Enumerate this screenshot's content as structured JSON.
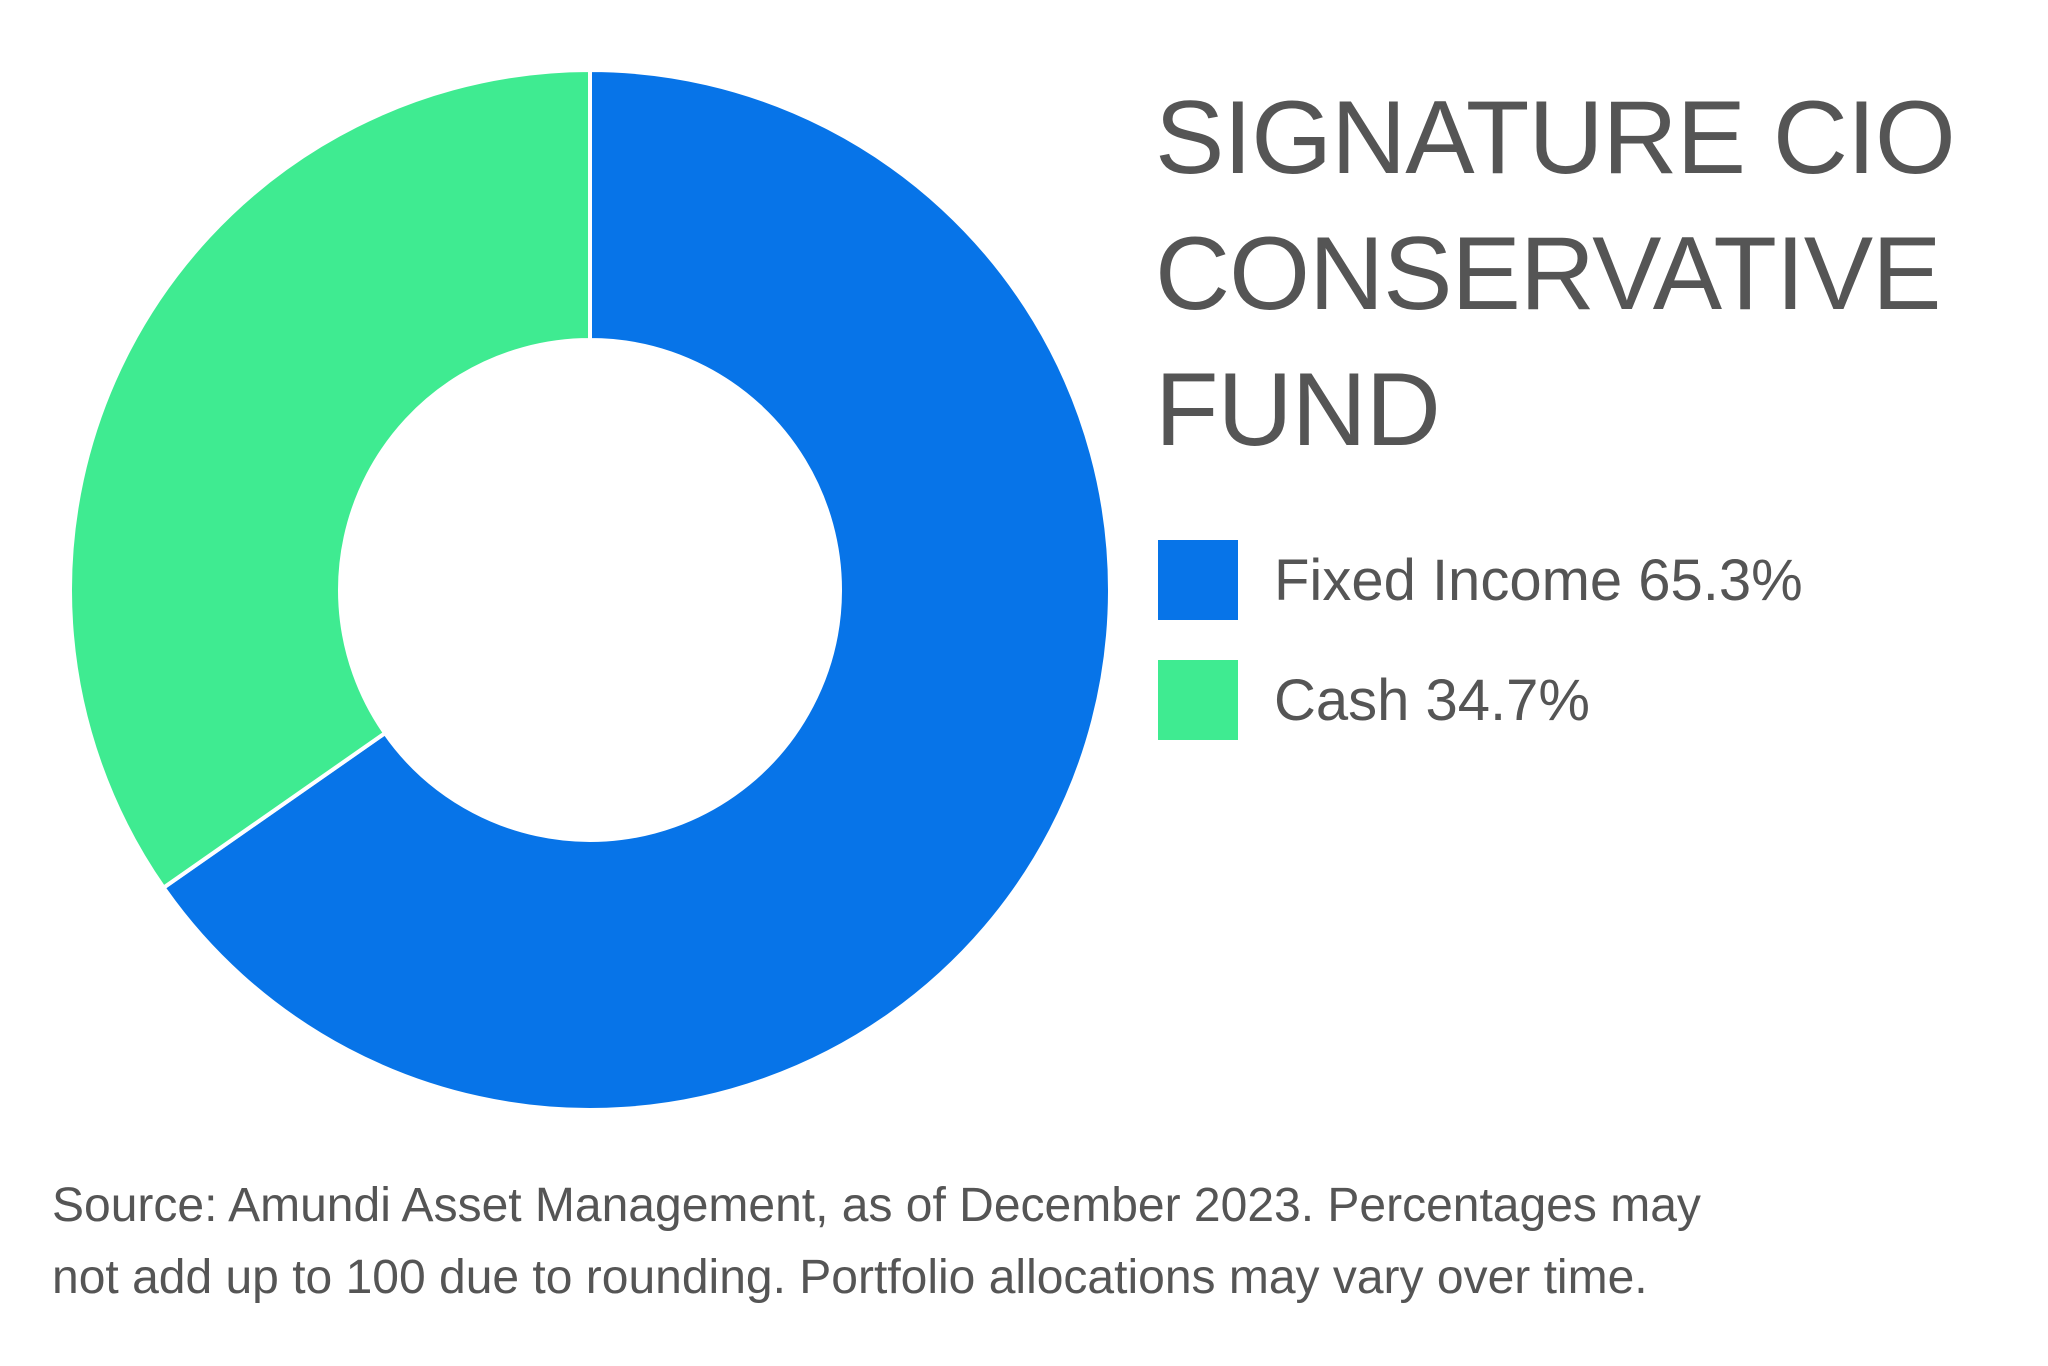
{
  "chart_data": {
    "type": "pie",
    "style": "donut",
    "title_lines": [
      "SIGNATURE CIO",
      "CONSERVATIVE",
      "FUND"
    ],
    "slices": [
      {
        "label": "Fixed Income",
        "value": 65.3,
        "display": "Fixed Income 65.3%",
        "color": "#0774E8"
      },
      {
        "label": "Cash",
        "value": 34.7,
        "display": "Cash 34.7%",
        "color": "#3FEB91"
      }
    ],
    "legend_position": "right",
    "footnote_lines": [
      "Source: Amundi Asset Management, as of December 2023. Percentages may",
      "not add up to 100 due to rounding. Portfolio allocations may vary over time."
    ]
  }
}
